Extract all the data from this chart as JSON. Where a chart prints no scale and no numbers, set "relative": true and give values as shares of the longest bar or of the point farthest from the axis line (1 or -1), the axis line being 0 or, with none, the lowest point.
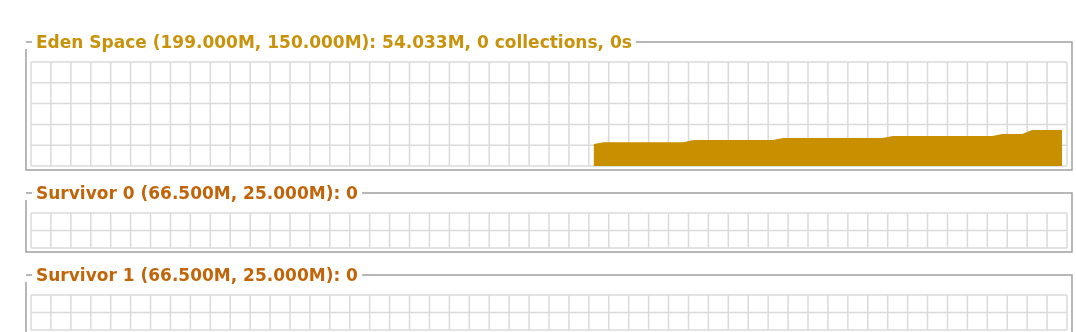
{
  "chart_data": [
    {
      "type": "area",
      "title": "Eden Space (199.000M, 150.000M): 54.033M, 0 collections, 0s",
      "relative": true,
      "grid": true,
      "color": "#c89000",
      "categories": [
        null,
        null,
        null,
        null,
        null,
        null,
        null,
        null,
        null,
        null,
        null,
        null,
        null,
        null,
        null,
        null,
        null,
        null,
        null,
        null,
        null,
        null,
        null,
        null,
        null,
        null,
        null,
        null,
        null,
        null,
        null,
        null,
        null,
        null,
        null,
        null,
        null,
        null,
        null,
        null,
        null,
        null,
        null,
        null,
        null,
        null,
        null,
        null,
        null,
        null,
        null,
        null,
        null,
        null,
        null,
        null,
        null,
        null,
        null,
        null,
        null,
        null,
        null,
        null,
        null,
        null,
        null,
        null,
        null,
        null,
        null,
        null,
        null,
        null,
        null,
        null,
        null,
        null,
        null,
        null,
        null,
        null,
        null,
        null,
        null,
        null,
        null,
        null,
        null,
        null,
        null,
        null,
        null,
        null,
        null,
        null,
        null,
        null,
        null,
        null,
        null,
        null,
        null,
        null
      ],
      "values": [
        null,
        null,
        null,
        null,
        null,
        null,
        null,
        null,
        null,
        null,
        null,
        null,
        null,
        null,
        null,
        null,
        null,
        null,
        null,
        null,
        null,
        null,
        null,
        null,
        null,
        null,
        null,
        null,
        null,
        null,
        null,
        null,
        null,
        null,
        null,
        null,
        null,
        null,
        null,
        null,
        null,
        null,
        null,
        null,
        null,
        null,
        null,
        null,
        null,
        null,
        null,
        null,
        null,
        null,
        null,
        null,
        0.61,
        0.66,
        0.66,
        0.66,
        0.66,
        0.66,
        0.66,
        0.66,
        0.66,
        0.66,
        0.72,
        0.72,
        0.72,
        0.72,
        0.72,
        0.72,
        0.72,
        0.72,
        0.72,
        0.78,
        0.78,
        0.78,
        0.78,
        0.78,
        0.78,
        0.78,
        0.78,
        0.78,
        0.78,
        0.78,
        0.83,
        0.83,
        0.83,
        0.83,
        0.83,
        0.83,
        0.83,
        0.83,
        0.83,
        0.83,
        0.83,
        0.89,
        0.89,
        0.89,
        1,
        1,
        1,
        1
      ]
    },
    {
      "type": "other",
      "title": "Survivor 0 (66.500M, 25.000M): 0"
    },
    {
      "type": "other",
      "title": "Survivor 1 (66.500M, 25.000M): 0"
    }
  ]
}
